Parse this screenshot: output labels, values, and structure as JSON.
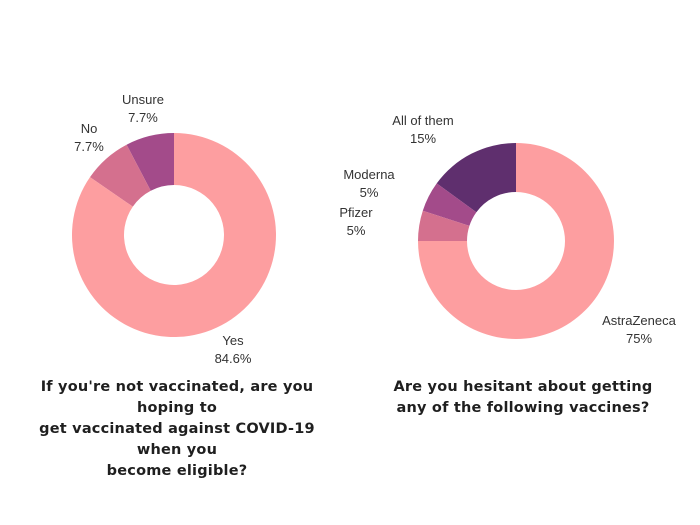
{
  "chart_data": [
    {
      "type": "pie",
      "donut": true,
      "title_lines": [
        "If you're not vaccinated, are you hoping to",
        "get vaccinated against COVID-19 when you",
        "become eligible?"
      ],
      "slices": [
        {
          "label": "Unsure",
          "value": 7.7,
          "value_label": "7.7%",
          "color": "#a34b8a"
        },
        {
          "label": "No",
          "value": 7.7,
          "value_label": "7.7%",
          "color": "#d4708e"
        },
        {
          "label": "Yes",
          "value": 84.6,
          "value_label": "84.6%",
          "color": "#fd9ea0"
        }
      ]
    },
    {
      "type": "pie",
      "donut": true,
      "title_lines": [
        "Are you hesitant about getting",
        "any of the following vaccines?"
      ],
      "slices": [
        {
          "label": "All of them",
          "value": 15,
          "value_label": "15%",
          "color": "#5f2f6e"
        },
        {
          "label": "Moderna",
          "value": 5,
          "value_label": "5%",
          "color": "#a34b8a"
        },
        {
          "label": "Pfizer",
          "value": 5,
          "value_label": "5%",
          "color": "#d4708e"
        },
        {
          "label": "AstraZeneca",
          "value": 75,
          "value_label": "75%",
          "color": "#fd9ea0"
        }
      ]
    }
  ]
}
